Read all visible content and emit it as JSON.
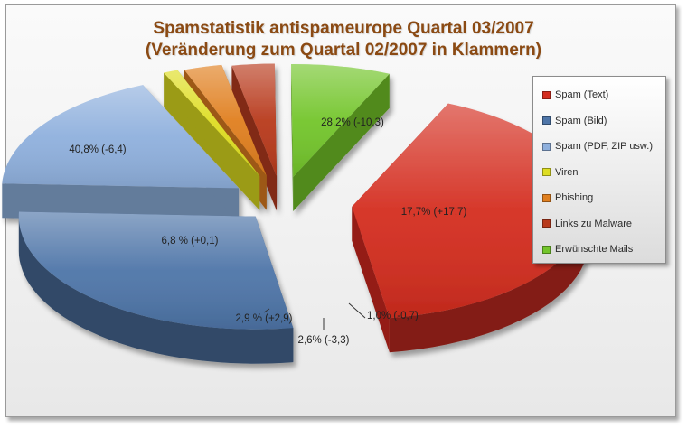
{
  "chart_data": {
    "type": "pie",
    "title": [
      "Spamstatistik antispameurope Quartal 03/2007",
      "(Veränderung zum Quartal 02/2007 in Klammern)"
    ],
    "legend_position": "right",
    "slices": [
      {
        "name": "Spam (Text)",
        "value": 40.8,
        "change": -6.4,
        "label": "40,8% (-6,4)",
        "color": "#d42d1f"
      },
      {
        "name": "Spam (Bild)",
        "value": 28.2,
        "change": -10.3,
        "label": "28,2% (-10,3)",
        "color": "#4e75a8"
      },
      {
        "name": "Spam (PDF, ZIP usw.)",
        "value": 17.7,
        "change": 17.7,
        "label": "17,7% (+17,7)",
        "color": "#8fb0dd"
      },
      {
        "name": "Viren",
        "value": 1.0,
        "change": -0.7,
        "label": "1,0% (-0,7)",
        "color": "#dedd22"
      },
      {
        "name": "Phishing",
        "value": 2.6,
        "change": -3.3,
        "label": "2,6% (-3,3)",
        "color": "#e07f1f"
      },
      {
        "name": "Links zu Malware",
        "value": 2.9,
        "change": 2.9,
        "label": "2,9 % (+2,9)",
        "color": "#b83a1c"
      },
      {
        "name": "Erwünschte Mails",
        "value": 6.8,
        "change": 0.1,
        "label": "6,8 % (+0,1)",
        "color": "#73c52b"
      }
    ]
  }
}
